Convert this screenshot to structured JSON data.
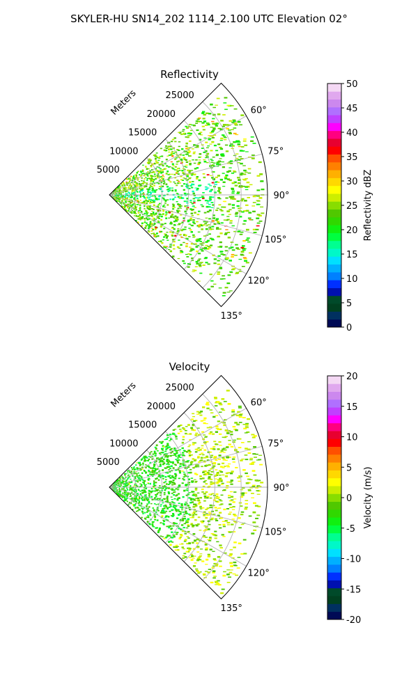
{
  "figure": {
    "title": "SKYLER-HU  SN14_202  1114_2.100 UTC Elevation 02°"
  },
  "chart_data": [
    {
      "type": "heatmap",
      "projection": "polar-sector",
      "title": "Reflectivity",
      "range_label": "Meters",
      "range_ticks": [
        5000,
        10000,
        15000,
        20000,
        25000
      ],
      "range_max": 30000,
      "azimuth_range_deg": [
        45,
        135
      ],
      "azimuth_ticks": [
        60,
        75,
        90,
        105,
        120,
        135
      ],
      "grid": true,
      "colorbar": {
        "label": "Reflectivity dBZ",
        "min": 0,
        "max": 50,
        "ticks": [
          0,
          5,
          10,
          15,
          20,
          25,
          30,
          35,
          40,
          45,
          50
        ]
      }
    },
    {
      "type": "heatmap",
      "projection": "polar-sector",
      "title": "Velocity",
      "range_label": "Meters",
      "range_ticks": [
        5000,
        10000,
        15000,
        20000,
        25000
      ],
      "range_max": 30000,
      "azimuth_range_deg": [
        45,
        135
      ],
      "azimuth_ticks": [
        60,
        75,
        90,
        105,
        120,
        135
      ],
      "grid": true,
      "colorbar": {
        "label": "Velocity (m/s)",
        "min": -20,
        "max": 20,
        "ticks": [
          -20,
          -15,
          -10,
          -5,
          0,
          5,
          10,
          15,
          20
        ]
      }
    }
  ]
}
